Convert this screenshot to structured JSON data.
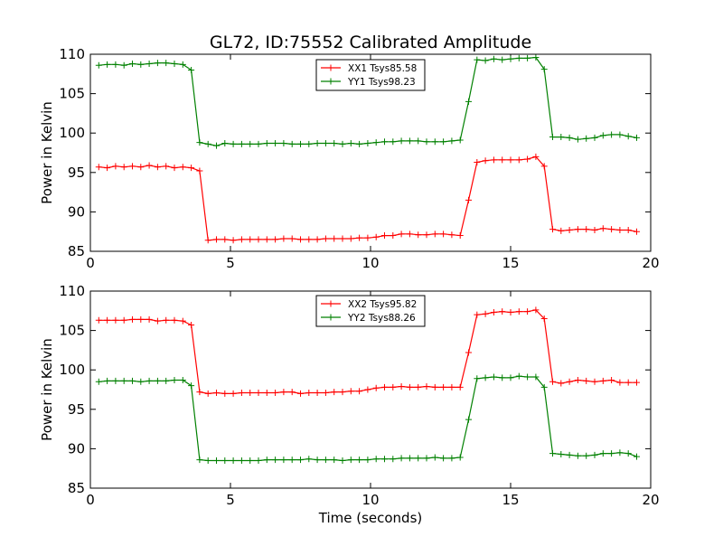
{
  "title": "GL72, ID:75552 Calibrated Amplitude",
  "xlabel": "Time (seconds)",
  "colors": {
    "red": "#ff0000",
    "green": "#008000"
  },
  "chart_data": [
    {
      "type": "line",
      "ylabel": "Power in Kelvin",
      "xlim": [
        0,
        20
      ],
      "ylim": [
        85,
        110
      ],
      "xticks": [
        0,
        5,
        10,
        15,
        20
      ],
      "yticks": [
        85,
        90,
        95,
        100,
        105,
        110
      ],
      "legend_position": "top-center",
      "x": [
        0.3,
        0.6,
        0.9,
        1.2,
        1.5,
        1.8,
        2.1,
        2.4,
        2.7,
        3.0,
        3.3,
        3.6,
        3.9,
        4.2,
        4.5,
        4.8,
        5.1,
        5.4,
        5.7,
        6.0,
        6.3,
        6.6,
        6.9,
        7.2,
        7.5,
        7.8,
        8.1,
        8.4,
        8.7,
        9.0,
        9.3,
        9.6,
        9.9,
        10.2,
        10.5,
        10.8,
        11.1,
        11.4,
        11.7,
        12.0,
        12.3,
        12.6,
        12.9,
        13.2,
        13.5,
        13.8,
        14.1,
        14.4,
        14.7,
        15.0,
        15.3,
        15.6,
        15.9,
        16.2,
        16.5,
        16.8,
        17.1,
        17.4,
        17.7,
        18.0,
        18.3,
        18.6,
        18.9,
        19.2,
        19.5
      ],
      "series": [
        {
          "name": "XX1 Tsys85.58",
          "color": "#ff0000",
          "values": [
            95.7,
            95.6,
            95.8,
            95.7,
            95.8,
            95.7,
            95.9,
            95.7,
            95.8,
            95.6,
            95.7,
            95.6,
            95.2,
            86.4,
            86.5,
            86.5,
            86.4,
            86.5,
            86.5,
            86.5,
            86.5,
            86.5,
            86.6,
            86.6,
            86.5,
            86.5,
            86.5,
            86.6,
            86.6,
            86.6,
            86.6,
            86.7,
            86.7,
            86.8,
            87.0,
            87.0,
            87.2,
            87.2,
            87.1,
            87.1,
            87.2,
            87.2,
            87.1,
            87.0,
            91.5,
            96.3,
            96.5,
            96.6,
            96.6,
            96.6,
            96.6,
            96.7,
            97.0,
            95.8,
            87.8,
            87.6,
            87.7,
            87.8,
            87.8,
            87.7,
            87.9,
            87.8,
            87.7,
            87.7,
            87.5
          ]
        },
        {
          "name": "YY1 Tsys98.23",
          "color": "#008000",
          "values": [
            108.6,
            108.7,
            108.7,
            108.6,
            108.8,
            108.7,
            108.8,
            108.9,
            108.9,
            108.8,
            108.7,
            108.0,
            98.8,
            98.6,
            98.4,
            98.7,
            98.6,
            98.6,
            98.6,
            98.6,
            98.7,
            98.7,
            98.7,
            98.6,
            98.6,
            98.6,
            98.7,
            98.7,
            98.7,
            98.6,
            98.7,
            98.6,
            98.7,
            98.8,
            98.9,
            98.9,
            99.0,
            99.0,
            99.0,
            98.9,
            98.9,
            98.9,
            99.0,
            99.1,
            104.0,
            109.3,
            109.2,
            109.4,
            109.3,
            109.4,
            109.5,
            109.5,
            109.6,
            108.1,
            99.5,
            99.5,
            99.4,
            99.2,
            99.3,
            99.4,
            99.7,
            99.8,
            99.8,
            99.6,
            99.4
          ]
        }
      ]
    },
    {
      "type": "line",
      "ylabel": "Power in Kelvin",
      "xlabel": "Time (seconds)",
      "xlim": [
        0,
        20
      ],
      "ylim": [
        85,
        110
      ],
      "xticks": [
        0,
        5,
        10,
        15,
        20
      ],
      "yticks": [
        85,
        90,
        95,
        100,
        105,
        110
      ],
      "legend_position": "top-center",
      "x": [
        0.3,
        0.6,
        0.9,
        1.2,
        1.5,
        1.8,
        2.1,
        2.4,
        2.7,
        3.0,
        3.3,
        3.6,
        3.9,
        4.2,
        4.5,
        4.8,
        5.1,
        5.4,
        5.7,
        6.0,
        6.3,
        6.6,
        6.9,
        7.2,
        7.5,
        7.8,
        8.1,
        8.4,
        8.7,
        9.0,
        9.3,
        9.6,
        9.9,
        10.2,
        10.5,
        10.8,
        11.1,
        11.4,
        11.7,
        12.0,
        12.3,
        12.6,
        12.9,
        13.2,
        13.5,
        13.8,
        14.1,
        14.4,
        14.7,
        15.0,
        15.3,
        15.6,
        15.9,
        16.2,
        16.5,
        16.8,
        17.1,
        17.4,
        17.7,
        18.0,
        18.3,
        18.6,
        18.9,
        19.2,
        19.5
      ],
      "series": [
        {
          "name": "XX2 Tsys95.82",
          "color": "#ff0000",
          "values": [
            106.3,
            106.3,
            106.3,
            106.3,
            106.4,
            106.4,
            106.4,
            106.2,
            106.3,
            106.3,
            106.2,
            105.7,
            97.2,
            97.0,
            97.1,
            97.0,
            97.0,
            97.1,
            97.1,
            97.1,
            97.1,
            97.1,
            97.2,
            97.2,
            97.0,
            97.1,
            97.1,
            97.1,
            97.2,
            97.2,
            97.3,
            97.3,
            97.5,
            97.7,
            97.8,
            97.8,
            97.9,
            97.8,
            97.8,
            97.9,
            97.8,
            97.8,
            97.8,
            97.8,
            102.2,
            107.0,
            107.1,
            107.3,
            107.4,
            107.3,
            107.4,
            107.4,
            107.6,
            106.5,
            98.5,
            98.3,
            98.5,
            98.7,
            98.6,
            98.5,
            98.6,
            98.7,
            98.4,
            98.4,
            98.4
          ]
        },
        {
          "name": "YY2 Tsys88.26",
          "color": "#008000",
          "values": [
            98.5,
            98.6,
            98.6,
            98.6,
            98.6,
            98.5,
            98.6,
            98.6,
            98.6,
            98.7,
            98.7,
            98.0,
            88.6,
            88.5,
            88.5,
            88.5,
            88.5,
            88.5,
            88.5,
            88.5,
            88.6,
            88.6,
            88.6,
            88.6,
            88.6,
            88.7,
            88.6,
            88.6,
            88.6,
            88.5,
            88.6,
            88.6,
            88.6,
            88.7,
            88.7,
            88.7,
            88.8,
            88.8,
            88.8,
            88.8,
            88.9,
            88.8,
            88.8,
            88.9,
            93.7,
            98.9,
            99.0,
            99.1,
            99.0,
            99.0,
            99.2,
            99.1,
            99.1,
            97.8,
            89.4,
            89.3,
            89.2,
            89.1,
            89.1,
            89.2,
            89.4,
            89.4,
            89.5,
            89.4,
            89.0
          ]
        }
      ]
    }
  ]
}
